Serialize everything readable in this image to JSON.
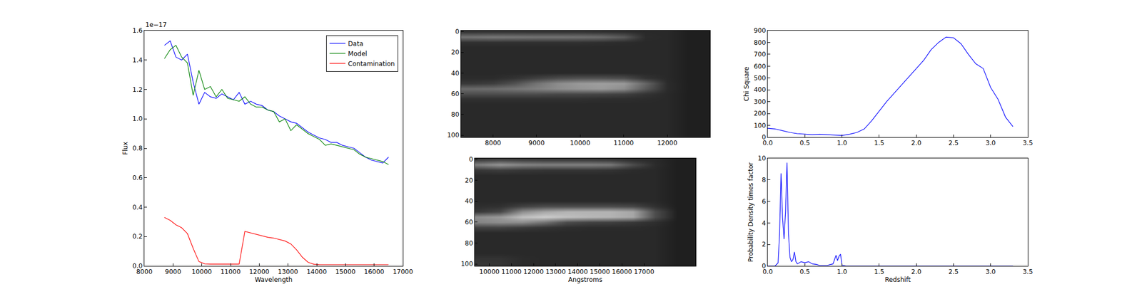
{
  "chart_data": [
    {
      "type": "line",
      "x_label": "Wavelength",
      "y_label": "Flux",
      "annotations": [
        {
          "text": "1e−17"
        }
      ],
      "x": [
        8700,
        8900,
        9100,
        9300,
        9500,
        9700,
        9900,
        10100,
        10300,
        10500,
        10700,
        10900,
        11100,
        11300,
        11500,
        11700,
        11900,
        12100,
        12300,
        12500,
        12700,
        12900,
        13100,
        13300,
        13500,
        13700,
        13900,
        14100,
        14300,
        14500,
        14700,
        14900,
        15100,
        15300,
        15500,
        15700,
        15900,
        16100,
        16300,
        16500
      ],
      "series": [
        {
          "name": "Data",
          "color": "#0000ff",
          "values": [
            1.5,
            1.53,
            1.42,
            1.4,
            1.44,
            1.25,
            1.1,
            1.18,
            1.15,
            1.14,
            1.17,
            1.15,
            1.13,
            1.18,
            1.1,
            1.12,
            1.1,
            1.09,
            1.06,
            1.05,
            1.02,
            1.0,
            0.98,
            0.97,
            0.94,
            0.91,
            0.89,
            0.87,
            0.86,
            0.84,
            0.84,
            0.82,
            0.81,
            0.8,
            0.77,
            0.74,
            0.72,
            0.71,
            0.7,
            0.74
          ]
        },
        {
          "name": "Model",
          "color": "#008000",
          "values": [
            1.41,
            1.47,
            1.5,
            1.42,
            1.38,
            1.16,
            1.33,
            1.2,
            1.22,
            1.15,
            1.2,
            1.14,
            1.13,
            1.12,
            1.15,
            1.1,
            1.08,
            1.08,
            1.06,
            1.05,
            0.98,
            1.0,
            0.92,
            0.96,
            0.93,
            0.9,
            0.88,
            0.86,
            0.82,
            0.83,
            0.82,
            0.81,
            0.8,
            0.79,
            0.76,
            0.74,
            0.73,
            0.72,
            0.71,
            0.69
          ]
        },
        {
          "name": "Contamination",
          "color": "#ff0000",
          "values": [
            0.33,
            0.31,
            0.28,
            0.26,
            0.22,
            0.12,
            0.03,
            0.015,
            0.013,
            0.013,
            0.013,
            0.013,
            0.013,
            0.013,
            0.235,
            0.225,
            0.215,
            0.205,
            0.195,
            0.19,
            0.18,
            0.17,
            0.15,
            0.11,
            0.06,
            0.025,
            0.012,
            0.008,
            0.008,
            0.008,
            0.008,
            0.008,
            0.008,
            0.008,
            0.008,
            0.008,
            0.008,
            0.008,
            0.008,
            0.008
          ]
        }
      ],
      "xlim": [
        8000,
        17000
      ],
      "xticks": [
        8000,
        9000,
        10000,
        11000,
        12000,
        13000,
        14000,
        15000,
        16000,
        17000
      ],
      "ylim": [
        0,
        1.6
      ],
      "yticks": [
        {
          "value": 0,
          "label": "0.0"
        },
        {
          "value": 0.2,
          "label": "0.2"
        },
        {
          "value": 0.4,
          "label": "0.4"
        },
        {
          "value": 0.6,
          "label": "0.6"
        },
        {
          "value": 0.8,
          "label": "0.8"
        },
        {
          "value": 1.0,
          "label": "1.0"
        },
        {
          "value": 1.2,
          "label": "1.2"
        },
        {
          "value": 1.4,
          "label": "1.4"
        },
        {
          "value": 1.6,
          "label": "1.6"
        }
      ],
      "grid": false,
      "legend": "upper right"
    },
    {
      "type": "heatmap",
      "x": [
        7500,
        8000,
        8500,
        9000,
        9500,
        10000,
        10500,
        11000,
        11500,
        12000,
        12500,
        12900
      ],
      "y": [
        0,
        5,
        10,
        15,
        20,
        25,
        30,
        35,
        40,
        45,
        50,
        55,
        60,
        65,
        70,
        75,
        80,
        85,
        90,
        95,
        100
      ],
      "cells": [
        [
          0.2,
          0.2,
          0.2,
          0.2,
          0.2,
          0.2,
          0.19,
          0.18,
          0.16,
          0.16,
          0.12,
          0.12
        ],
        [
          0.45,
          0.47,
          0.46,
          0.45,
          0.45,
          0.44,
          0.42,
          0.35,
          0.17,
          0.16,
          0.12,
          0.12
        ],
        [
          0.19,
          0.19,
          0.19,
          0.19,
          0.19,
          0.19,
          0.18,
          0.17,
          0.16,
          0.16,
          0.12,
          0.12
        ],
        [
          0.16,
          0.16,
          0.16,
          0.16,
          0.16,
          0.16,
          0.16,
          0.16,
          0.16,
          0.16,
          0.12,
          0.12
        ],
        [
          0.16,
          0.16,
          0.16,
          0.16,
          0.16,
          0.16,
          0.16,
          0.16,
          0.16,
          0.16,
          0.12,
          0.12
        ],
        [
          0.16,
          0.16,
          0.16,
          0.16,
          0.16,
          0.16,
          0.16,
          0.16,
          0.16,
          0.16,
          0.12,
          0.12
        ],
        [
          0.16,
          0.16,
          0.16,
          0.16,
          0.16,
          0.16,
          0.16,
          0.16,
          0.16,
          0.16,
          0.12,
          0.12
        ],
        [
          0.16,
          0.16,
          0.16,
          0.16,
          0.16,
          0.16,
          0.16,
          0.16,
          0.16,
          0.16,
          0.12,
          0.12
        ],
        [
          0.16,
          0.16,
          0.16,
          0.16,
          0.16,
          0.16,
          0.16,
          0.16,
          0.16,
          0.16,
          0.12,
          0.12
        ],
        [
          0.17,
          0.17,
          0.2,
          0.25,
          0.3,
          0.32,
          0.32,
          0.3,
          0.2,
          0.16,
          0.12,
          0.12
        ],
        [
          0.22,
          0.24,
          0.32,
          0.45,
          0.55,
          0.6,
          0.62,
          0.6,
          0.4,
          0.17,
          0.12,
          0.12
        ],
        [
          0.42,
          0.43,
          0.46,
          0.5,
          0.55,
          0.58,
          0.6,
          0.55,
          0.35,
          0.17,
          0.12,
          0.12
        ],
        [
          0.3,
          0.3,
          0.3,
          0.3,
          0.28,
          0.28,
          0.27,
          0.25,
          0.2,
          0.16,
          0.12,
          0.12
        ],
        [
          0.19,
          0.19,
          0.19,
          0.19,
          0.19,
          0.19,
          0.18,
          0.18,
          0.17,
          0.16,
          0.12,
          0.12
        ],
        [
          0.16,
          0.16,
          0.16,
          0.16,
          0.16,
          0.16,
          0.16,
          0.16,
          0.16,
          0.16,
          0.12,
          0.12
        ],
        [
          0.16,
          0.16,
          0.16,
          0.16,
          0.16,
          0.16,
          0.16,
          0.16,
          0.16,
          0.16,
          0.12,
          0.12
        ],
        [
          0.16,
          0.16,
          0.16,
          0.16,
          0.16,
          0.16,
          0.16,
          0.16,
          0.16,
          0.16,
          0.12,
          0.12
        ],
        [
          0.16,
          0.16,
          0.16,
          0.16,
          0.16,
          0.16,
          0.16,
          0.16,
          0.16,
          0.16,
          0.12,
          0.12
        ],
        [
          0.16,
          0.16,
          0.16,
          0.16,
          0.16,
          0.16,
          0.16,
          0.16,
          0.16,
          0.16,
          0.12,
          0.12
        ],
        [
          0.16,
          0.16,
          0.16,
          0.16,
          0.16,
          0.16,
          0.16,
          0.16,
          0.16,
          0.16,
          0.12,
          0.12
        ],
        [
          0.16,
          0.16,
          0.16,
          0.16,
          0.16,
          0.16,
          0.16,
          0.16,
          0.16,
          0.16,
          0.12,
          0.12
        ]
      ],
      "zlim": [
        0,
        1
      ],
      "xlim": [
        7267,
        12983
      ],
      "xticks": [
        8000,
        9000,
        10000,
        11000,
        12000
      ],
      "ylim": [
        102,
        -1
      ],
      "yticks": [
        0,
        20,
        40,
        60,
        80,
        100
      ],
      "grid": false
    },
    {
      "type": "heatmap",
      "x_label": "Angstroms",
      "x": [
        9500,
        10500,
        11500,
        12500,
        13500,
        14500,
        15500,
        16500,
        17500,
        18500,
        19300
      ],
      "y": [
        0,
        5,
        10,
        15,
        20,
        25,
        30,
        35,
        40,
        45,
        50,
        55,
        60,
        65,
        70,
        75,
        80,
        85,
        90,
        95,
        100
      ],
      "cells": [
        [
          0.22,
          0.24,
          0.22,
          0.21,
          0.21,
          0.21,
          0.2,
          0.17,
          0.16,
          0.12,
          0.12
        ],
        [
          0.5,
          0.58,
          0.52,
          0.5,
          0.5,
          0.5,
          0.47,
          0.3,
          0.17,
          0.12,
          0.12
        ],
        [
          0.22,
          0.24,
          0.22,
          0.21,
          0.21,
          0.21,
          0.2,
          0.17,
          0.16,
          0.12,
          0.12
        ],
        [
          0.16,
          0.16,
          0.16,
          0.16,
          0.16,
          0.16,
          0.16,
          0.16,
          0.16,
          0.12,
          0.12
        ],
        [
          0.16,
          0.16,
          0.16,
          0.16,
          0.16,
          0.16,
          0.16,
          0.16,
          0.16,
          0.12,
          0.12
        ],
        [
          0.16,
          0.16,
          0.16,
          0.16,
          0.16,
          0.16,
          0.16,
          0.16,
          0.16,
          0.12,
          0.12
        ],
        [
          0.16,
          0.16,
          0.16,
          0.16,
          0.16,
          0.16,
          0.16,
          0.16,
          0.16,
          0.12,
          0.12
        ],
        [
          0.16,
          0.16,
          0.16,
          0.16,
          0.16,
          0.16,
          0.16,
          0.16,
          0.16,
          0.12,
          0.12
        ],
        [
          0.16,
          0.16,
          0.16,
          0.16,
          0.16,
          0.16,
          0.16,
          0.16,
          0.16,
          0.12,
          0.12
        ],
        [
          0.18,
          0.19,
          0.26,
          0.3,
          0.3,
          0.3,
          0.3,
          0.28,
          0.19,
          0.12,
          0.12
        ],
        [
          0.22,
          0.28,
          0.55,
          0.65,
          0.7,
          0.7,
          0.7,
          0.65,
          0.3,
          0.12,
          0.12
        ],
        [
          0.55,
          0.6,
          0.75,
          0.8,
          0.75,
          0.72,
          0.7,
          0.65,
          0.3,
          0.12,
          0.12
        ],
        [
          0.52,
          0.55,
          0.55,
          0.45,
          0.3,
          0.26,
          0.25,
          0.22,
          0.18,
          0.12,
          0.12
        ],
        [
          0.26,
          0.26,
          0.23,
          0.2,
          0.18,
          0.17,
          0.17,
          0.17,
          0.16,
          0.12,
          0.12
        ],
        [
          0.16,
          0.16,
          0.16,
          0.16,
          0.16,
          0.16,
          0.16,
          0.16,
          0.16,
          0.12,
          0.12
        ],
        [
          0.16,
          0.16,
          0.16,
          0.16,
          0.16,
          0.16,
          0.16,
          0.16,
          0.16,
          0.12,
          0.12
        ],
        [
          0.16,
          0.16,
          0.16,
          0.16,
          0.16,
          0.16,
          0.16,
          0.16,
          0.16,
          0.12,
          0.12
        ],
        [
          0.16,
          0.16,
          0.16,
          0.16,
          0.16,
          0.16,
          0.16,
          0.16,
          0.16,
          0.12,
          0.12
        ],
        [
          0.16,
          0.16,
          0.16,
          0.16,
          0.16,
          0.16,
          0.16,
          0.16,
          0.16,
          0.12,
          0.12
        ],
        [
          0.2,
          0.2,
          0.17,
          0.16,
          0.16,
          0.16,
          0.16,
          0.16,
          0.16,
          0.12,
          0.12
        ],
        [
          0.22,
          0.21,
          0.17,
          0.16,
          0.16,
          0.16,
          0.16,
          0.16,
          0.16,
          0.12,
          0.12
        ]
      ],
      "zlim": [
        0,
        1
      ],
      "xlim": [
        9340,
        19340
      ],
      "xticks": [
        10000,
        11000,
        12000,
        13000,
        14000,
        15000,
        16000,
        17000
      ],
      "ylim": [
        102,
        -1
      ],
      "yticks": [
        0,
        20,
        40,
        60,
        80,
        100
      ],
      "grid": false
    },
    {
      "type": "line",
      "y_label": "Chi Square",
      "x": [
        0,
        0.1,
        0.2,
        0.3,
        0.4,
        0.5,
        0.6,
        0.7,
        0.8,
        0.9,
        1.0,
        1.1,
        1.2,
        1.3,
        1.4,
        1.5,
        1.6,
        1.7,
        1.8,
        1.9,
        2.0,
        2.1,
        2.2,
        2.3,
        2.4,
        2.5,
        2.6,
        2.7,
        2.8,
        2.9,
        3.0,
        3.1,
        3.2,
        3.3
      ],
      "series": [
        {
          "color": "#0000ff",
          "values": [
            75,
            70,
            55,
            40,
            30,
            25,
            22,
            25,
            22,
            18,
            15,
            25,
            40,
            70,
            140,
            220,
            300,
            370,
            440,
            510,
            580,
            650,
            740,
            800,
            845,
            840,
            790,
            700,
            620,
            580,
            420,
            320,
            170,
            90
          ]
        }
      ],
      "xlim": [
        0,
        3.5
      ],
      "xticks": [
        {
          "value": 0,
          "label": "0.0"
        },
        {
          "value": 0.5,
          "label": "0.5"
        },
        {
          "value": 1,
          "label": "1.0"
        },
        {
          "value": 1.5,
          "label": "1.5"
        },
        {
          "value": 2,
          "label": "2.0"
        },
        {
          "value": 2.5,
          "label": "2.5"
        },
        {
          "value": 3,
          "label": "3.0"
        },
        {
          "value": 3.5,
          "label": "3.5"
        }
      ],
      "ylim": [
        0,
        900
      ],
      "yticks": [
        0,
        100,
        200,
        300,
        400,
        500,
        600,
        700,
        800,
        900
      ],
      "grid": false
    },
    {
      "type": "line",
      "x_label": "Redshift",
      "y_label": "Probability Density times factor",
      "x": [
        0,
        0.1,
        0.14,
        0.16,
        0.18,
        0.2,
        0.22,
        0.24,
        0.26,
        0.28,
        0.3,
        0.32,
        0.34,
        0.36,
        0.38,
        0.4,
        0.45,
        0.5,
        0.55,
        0.6,
        0.65,
        0.7,
        0.8,
        0.88,
        0.9,
        0.92,
        0.94,
        0.96,
        0.98,
        1.0,
        1.05,
        1.2,
        1.5,
        2.0,
        2.5,
        3.0,
        3.3
      ],
      "series": [
        {
          "color": "#0000ff",
          "values": [
            0,
            0,
            0.3,
            3.0,
            8.6,
            4.5,
            2.5,
            5.0,
            9.6,
            3.0,
            0.8,
            0.4,
            0.6,
            1.3,
            0.4,
            0.2,
            0.4,
            0.3,
            0.4,
            0.2,
            0.15,
            0.05,
            0.05,
            0.2,
            0.6,
            1.0,
            0.5,
            0.9,
            1.1,
            0.1,
            0,
            0,
            0,
            0,
            0,
            0,
            0
          ]
        }
      ],
      "xlim": [
        0,
        3.5
      ],
      "xticks": [
        {
          "value": 0,
          "label": "0.0"
        },
        {
          "value": 0.5,
          "label": "0.5"
        },
        {
          "value": 1,
          "label": "1.0"
        },
        {
          "value": 1.5,
          "label": "1.5"
        },
        {
          "value": 2,
          "label": "2.0"
        },
        {
          "value": 2.5,
          "label": "2.5"
        },
        {
          "value": 3,
          "label": "3.0"
        },
        {
          "value": 3.5,
          "label": "3.5"
        }
      ],
      "ylim": [
        0,
        10
      ],
      "yticks": [
        0,
        2,
        4,
        6,
        8,
        10
      ],
      "grid": false
    }
  ]
}
